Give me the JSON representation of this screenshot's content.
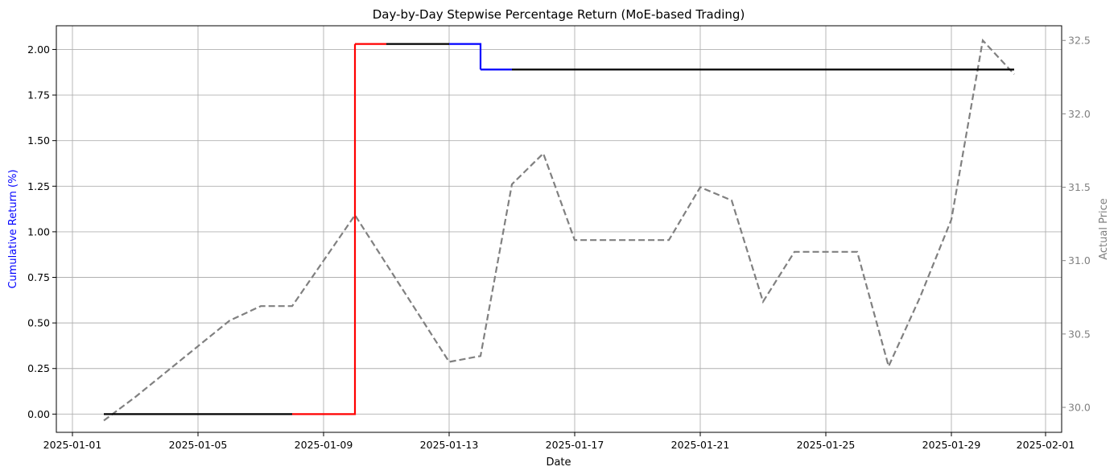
{
  "chart_data": {
    "type": "line",
    "title": "Day-by-Day Stepwise Percentage Return (MoE-based Trading)",
    "xlabel": "Date",
    "ylabel_left": "Cumulative Return (%)",
    "ylabel_right": "Actual Price",
    "xlim": [
      "2025-01-01",
      "2025-02-01"
    ],
    "ylim_left": [
      -0.1,
      2.13
    ],
    "ylim_right": [
      29.83,
      32.6
    ],
    "grid": true,
    "x_tick_labels": [
      "2025-01-01",
      "2025-01-05",
      "2025-01-09",
      "2025-01-13",
      "2025-01-17",
      "2025-01-21",
      "2025-01-25",
      "2025-01-29",
      "2025-02-01"
    ],
    "y_left_tick_labels": [
      "0.00",
      "0.25",
      "0.50",
      "0.75",
      "1.00",
      "1.25",
      "1.50",
      "1.75",
      "2.00"
    ],
    "y_right_tick_labels": [
      "30.0",
      "30.5",
      "31.0",
      "31.5",
      "32.0",
      "32.5"
    ],
    "colors": {
      "left_label": "#0000ff",
      "right_label": "#808080",
      "grid": "#b0b0b0",
      "price_line": "#808080"
    },
    "return_segments": [
      {
        "from": "2025-01-02",
        "to": "2025-01-08",
        "start": 0.0,
        "end": 0.0,
        "color": "#000000"
      },
      {
        "from": "2025-01-08",
        "to": "2025-01-10",
        "start": 0.0,
        "end": 2.03,
        "color": "#ff0000"
      },
      {
        "from": "2025-01-10",
        "to": "2025-01-11",
        "start": 2.03,
        "end": 2.03,
        "color": "#ff0000"
      },
      {
        "from": "2025-01-11",
        "to": "2025-01-13",
        "start": 2.03,
        "end": 2.03,
        "color": "#000000"
      },
      {
        "from": "2025-01-13",
        "to": "2025-01-14",
        "start": 2.03,
        "end": 1.89,
        "color": "#0000ff"
      },
      {
        "from": "2025-01-14",
        "to": "2025-01-15",
        "start": 1.89,
        "end": 1.89,
        "color": "#0000ff"
      },
      {
        "from": "2025-01-15",
        "to": "2025-01-31",
        "start": 1.89,
        "end": 1.89,
        "color": "#000000"
      }
    ],
    "price_series": {
      "x": [
        "2025-01-02",
        "2025-01-03",
        "2025-01-06",
        "2025-01-07",
        "2025-01-08",
        "2025-01-10",
        "2025-01-13",
        "2025-01-14",
        "2025-01-15",
        "2025-01-16",
        "2025-01-17",
        "2025-01-20",
        "2025-01-21",
        "2025-01-22",
        "2025-01-23",
        "2025-01-24",
        "2025-01-25",
        "2025-01-26",
        "2025-01-27",
        "2025-01-28",
        "2025-01-29",
        "2025-01-30",
        "2025-01-31"
      ],
      "y": [
        29.91,
        30.07,
        30.59,
        30.69,
        30.69,
        31.31,
        30.31,
        30.35,
        31.52,
        31.73,
        31.14,
        31.14,
        31.5,
        31.41,
        30.72,
        31.06,
        31.06,
        31.06,
        30.28,
        30.75,
        31.28,
        32.5,
        32.27
      ]
    }
  }
}
